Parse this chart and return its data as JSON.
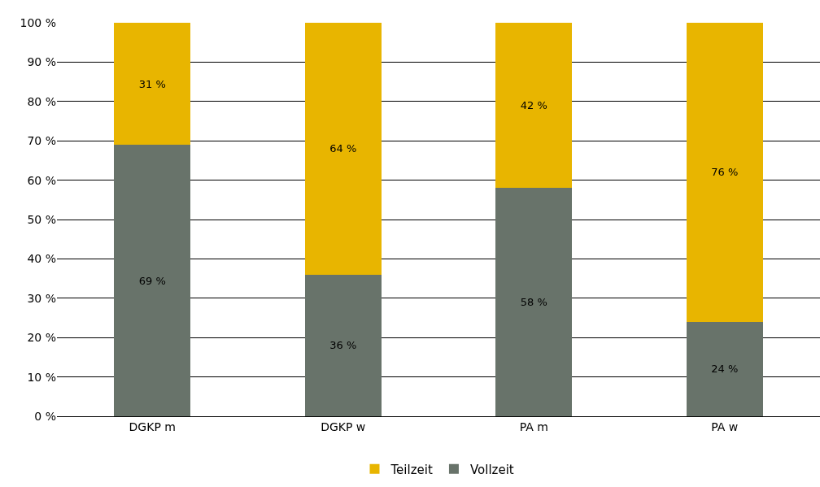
{
  "chart_data": {
    "type": "bar",
    "stacked": true,
    "categories": [
      "DGKP m",
      "DGKP w",
      "PA m",
      "PA w"
    ],
    "series": [
      {
        "name": "Vollzeit",
        "color": "#68736a",
        "values": [
          69,
          36,
          58,
          24
        ],
        "value_labels": [
          "69 %",
          "36 %",
          "58 %",
          "24 %"
        ]
      },
      {
        "name": "Teilzeit",
        "color": "#e8b500",
        "values": [
          31,
          64,
          42,
          76
        ],
        "value_labels": [
          "31 %",
          "64 %",
          "42 %",
          "76 %"
        ]
      }
    ],
    "ylim": [
      0,
      100
    ],
    "yticks": [
      {
        "value": 0,
        "label": "0 %"
      },
      {
        "value": 10,
        "label": "10 %"
      },
      {
        "value": 20,
        "label": "20 %"
      },
      {
        "value": 30,
        "label": "30 %"
      },
      {
        "value": 40,
        "label": "40 %"
      },
      {
        "value": 50,
        "label": "50 %"
      },
      {
        "value": 60,
        "label": "60 %"
      },
      {
        "value": 70,
        "label": "70 %"
      },
      {
        "value": 80,
        "label": "80 %"
      },
      {
        "value": 90,
        "label": "90 %"
      },
      {
        "value": 100,
        "label": "100 %"
      }
    ],
    "grid": "y",
    "legend": "bottom"
  }
}
